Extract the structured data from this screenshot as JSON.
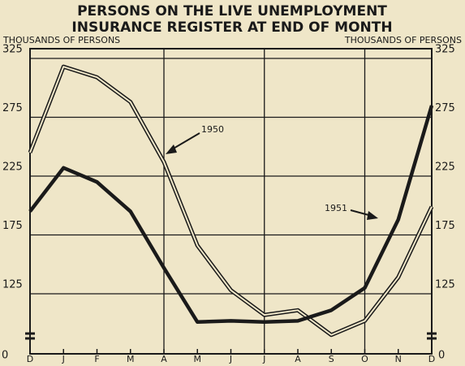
{
  "chart_data": {
    "type": "line",
    "title": [
      "PERSONS ON THE LIVE UNEMPLOYMENT",
      "INSURANCE REGISTER AT END OF MONTH"
    ],
    "y_label": "THOUSANDS OF PERSONS",
    "y2_label": "THOUSANDS OF PERSONS",
    "categories": [
      "D",
      "J",
      "F",
      "M",
      "A",
      "M",
      "J",
      "J",
      "A",
      "S",
      "O",
      "N",
      "D"
    ],
    "series": [
      {
        "name": "1950",
        "color": "#1a1a1a",
        "line_style": "double",
        "values": [
          245,
          318,
          309,
          288,
          237,
          166,
          128,
          107,
          111,
          90,
          102,
          139,
          199
        ]
      },
      {
        "name": "1951",
        "color": "#1a1a1a",
        "line_style": "solid",
        "values": [
          195,
          232,
          220,
          195,
          147,
          101,
          102,
          101,
          102,
          111,
          130,
          188,
          285
        ]
      }
    ],
    "ylim": [
      75,
      325
    ],
    "yticks": [
      125,
      175,
      225,
      275,
      325
    ],
    "axis_break_label": "0",
    "grid": true
  }
}
